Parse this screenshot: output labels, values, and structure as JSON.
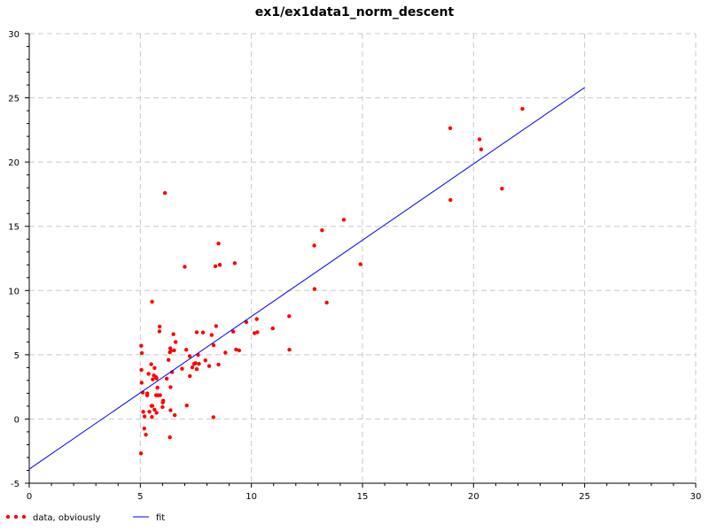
{
  "chart_data": {
    "type": "scatter",
    "title": "ex1/ex1data1_norm_descent",
    "xlabel": "",
    "ylabel": "",
    "xlim": [
      0,
      30
    ],
    "ylim": [
      -5,
      30
    ],
    "xticks": [
      0,
      5,
      10,
      15,
      20,
      25,
      30
    ],
    "yticks": [
      -5,
      0,
      5,
      10,
      15,
      20,
      25,
      30
    ],
    "grid": true,
    "legend_position": "bottom-left",
    "series": [
      {
        "name": "data, obviously",
        "kind": "scatter",
        "color": "#ff0000",
        "points": [
          [
            6.11,
            17.59
          ],
          [
            5.53,
            9.13
          ],
          [
            8.52,
            13.66
          ],
          [
            7.0,
            11.85
          ],
          [
            5.86,
            6.82
          ],
          [
            8.38,
            11.89
          ],
          [
            7.48,
            4.35
          ],
          [
            8.58,
            12.0
          ],
          [
            6.49,
            6.6
          ],
          [
            5.05,
            3.82
          ],
          [
            5.71,
            3.25
          ],
          [
            14.16,
            15.51
          ],
          [
            5.73,
            3.16
          ],
          [
            8.41,
            7.23
          ],
          [
            5.64,
            0.72
          ],
          [
            5.37,
            3.51
          ],
          [
            6.37,
            5.3
          ],
          [
            5.13,
            0.56
          ],
          [
            6.43,
            3.65
          ],
          [
            7.07,
            5.39
          ],
          [
            6.19,
            3.14
          ],
          [
            20.27,
            21.77
          ],
          [
            5.49,
            4.26
          ],
          [
            6.33,
            5.19
          ],
          [
            5.56,
            3.08
          ],
          [
            18.95,
            22.64
          ],
          [
            12.83,
            13.5
          ],
          [
            10.96,
            7.05
          ],
          [
            13.18,
            14.69
          ],
          [
            22.2,
            24.15
          ],
          [
            5.25,
            -1.22
          ],
          [
            6.59,
            5.99
          ],
          [
            9.25,
            12.13
          ],
          [
            5.89,
            1.85
          ],
          [
            8.21,
            6.54
          ],
          [
            7.93,
            4.56
          ],
          [
            8.1,
            4.12
          ],
          [
            5.61,
            3.39
          ],
          [
            12.84,
            10.12
          ],
          [
            6.35,
            5.5
          ],
          [
            5.41,
            0.56
          ],
          [
            6.88,
            3.91
          ],
          [
            11.71,
            5.39
          ],
          [
            5.77,
            2.44
          ],
          [
            7.82,
            6.73
          ],
          [
            7.09,
            1.05
          ],
          [
            5.07,
            5.13
          ],
          [
            5.8,
            1.84
          ],
          [
            11.7,
            8.0
          ],
          [
            5.54,
            1.02
          ],
          [
            7.54,
            6.75
          ],
          [
            5.31,
            1.84
          ],
          [
            7.42,
            4.29
          ],
          [
            7.6,
            4.99
          ],
          [
            6.03,
            1.42
          ],
          [
            6.33,
            -1.42
          ],
          [
            6.36,
            2.48
          ],
          [
            6.27,
            4.6
          ],
          [
            5.64,
            3.97
          ],
          [
            9.31,
            5.41
          ],
          [
            9.45,
            5.34
          ],
          [
            8.83,
            5.17
          ],
          [
            5.18,
            -0.74
          ],
          [
            21.28,
            17.93
          ],
          [
            14.91,
            12.05
          ],
          [
            18.96,
            17.05
          ],
          [
            7.22,
            4.89
          ],
          [
            8.3,
            5.74
          ],
          [
            10.24,
            7.78
          ],
          [
            5.5,
            1.02
          ],
          [
            20.34,
            20.99
          ],
          [
            10.14,
            6.68
          ],
          [
            7.34,
            4.02
          ],
          [
            6.01,
            1.28
          ],
          [
            7.23,
            3.34
          ],
          [
            5.03,
            -2.68
          ],
          [
            6.55,
            0.3
          ],
          [
            7.54,
            3.88
          ],
          [
            5.04,
            5.7
          ],
          [
            10.27,
            6.75
          ],
          [
            5.11,
            2.06
          ],
          [
            5.73,
            0.48
          ],
          [
            5.19,
            0.2
          ],
          [
            6.36,
            0.68
          ],
          [
            9.77,
            7.54
          ],
          [
            6.52,
            5.34
          ],
          [
            8.52,
            4.24
          ],
          [
            9.18,
            6.8
          ],
          [
            6.0,
            0.93
          ],
          [
            5.52,
            0.15
          ],
          [
            5.06,
            2.82
          ],
          [
            5.71,
            1.85
          ],
          [
            7.64,
            4.3
          ],
          [
            5.87,
            7.2
          ],
          [
            5.31,
            1.99
          ],
          [
            8.29,
            0.14
          ],
          [
            13.39,
            9.06
          ]
        ]
      },
      {
        "name": "fit",
        "kind": "line",
        "color": "#0000ff",
        "points": [
          [
            0,
            -3.9
          ],
          [
            25,
            25.8
          ]
        ]
      }
    ]
  }
}
